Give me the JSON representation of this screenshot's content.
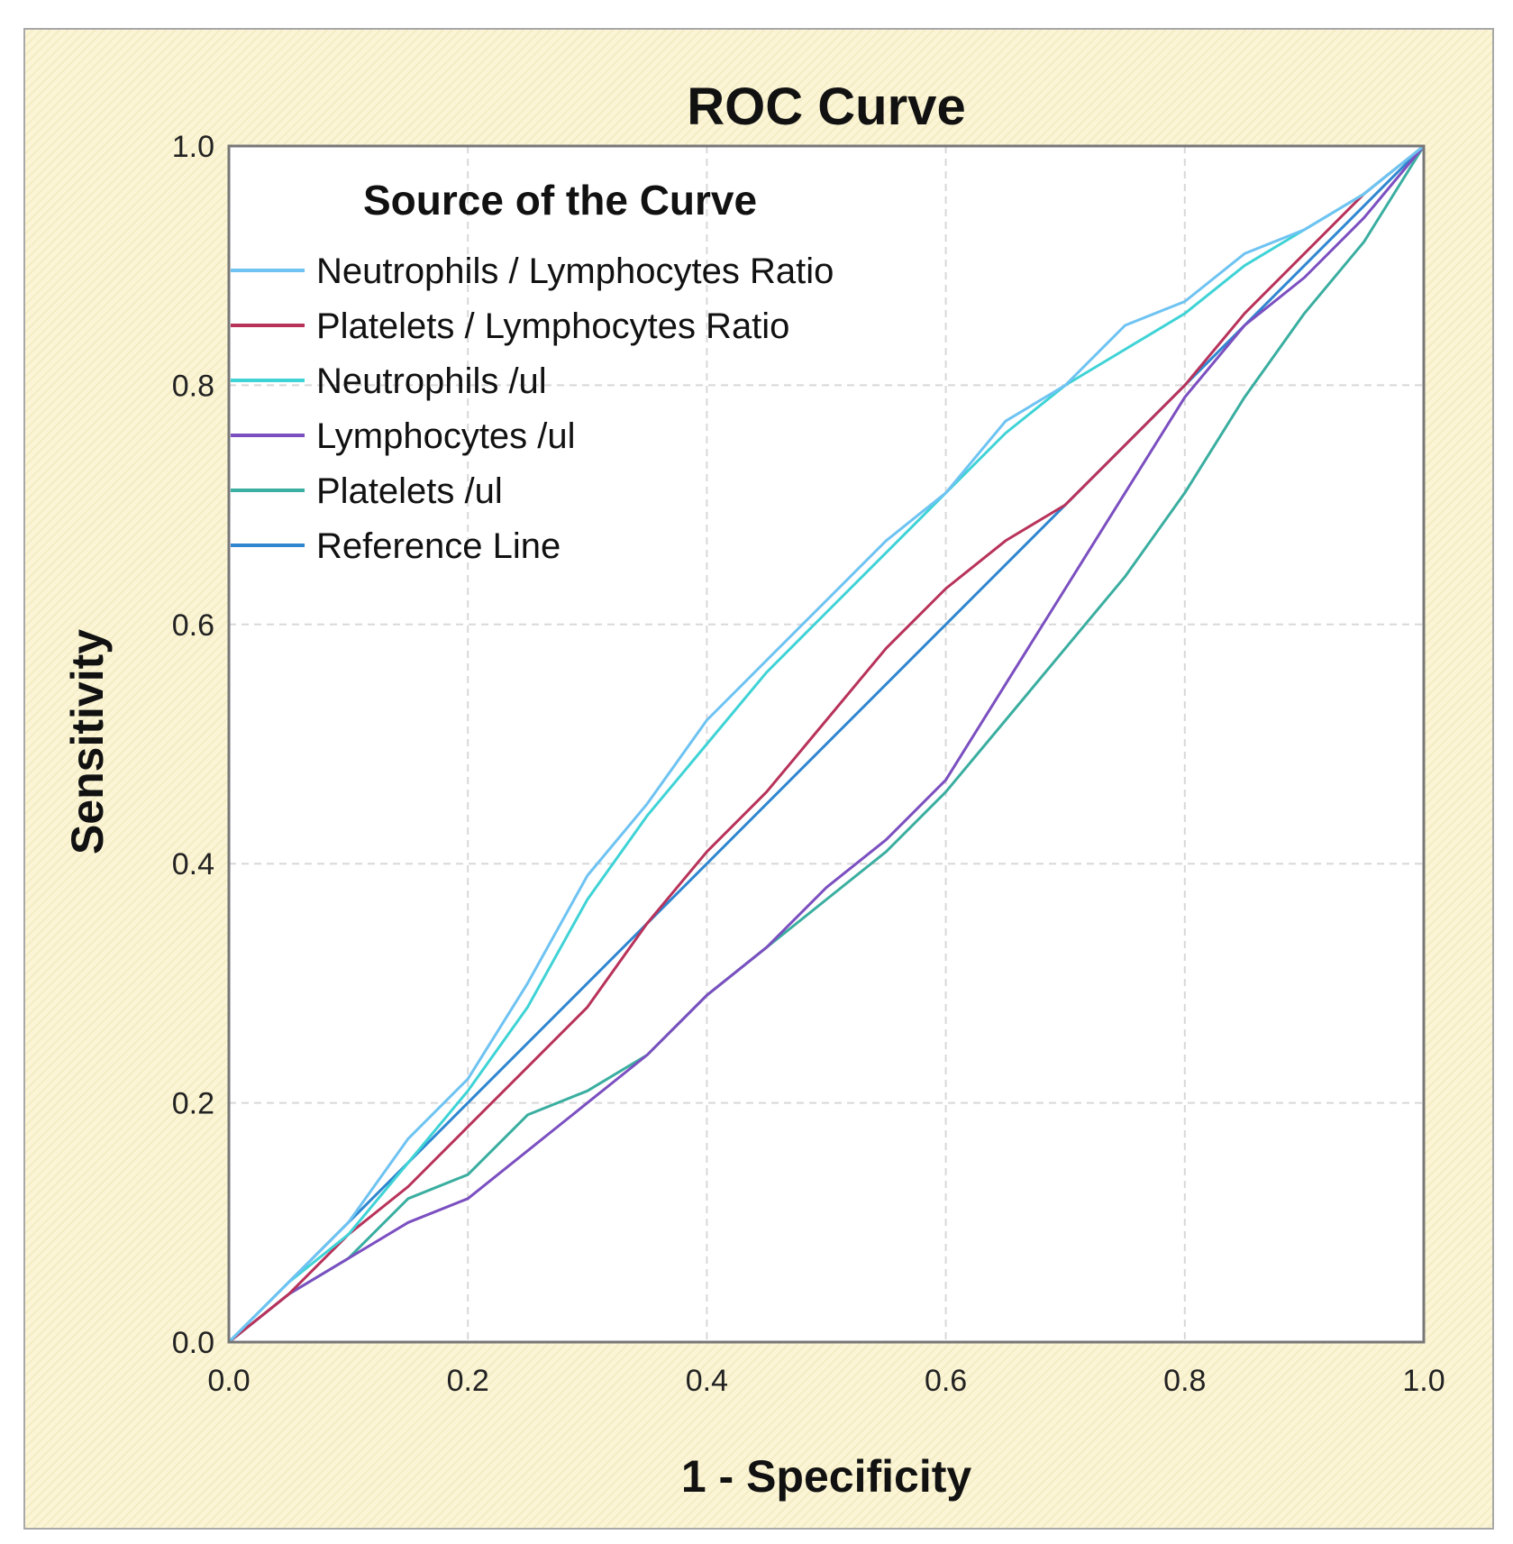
{
  "chart_data": {
    "type": "line",
    "title": "ROC Curve",
    "xlabel": "1 - Specificity",
    "ylabel": "Sensitivity",
    "xlim": [
      0,
      1
    ],
    "ylim": [
      0,
      1
    ],
    "xticks": [
      "0.0",
      "0.2",
      "0.4",
      "0.6",
      "0.8",
      "1.0"
    ],
    "yticks": [
      "0.0",
      "0.2",
      "0.4",
      "0.6",
      "0.8",
      "1.0"
    ],
    "grid": true,
    "legend": {
      "title": "Source of the Curve",
      "placement": "top-left"
    },
    "series": [
      {
        "name": "Neutrophils / Lymphocytes Ratio",
        "color": "#6ec3f2",
        "x": [
          0,
          0.05,
          0.1,
          0.15,
          0.2,
          0.25,
          0.3,
          0.35,
          0.4,
          0.45,
          0.5,
          0.55,
          0.6,
          0.65,
          0.7,
          0.75,
          0.8,
          0.85,
          0.9,
          0.95,
          1
        ],
        "y": [
          0,
          0.05,
          0.1,
          0.17,
          0.22,
          0.3,
          0.39,
          0.45,
          0.52,
          0.57,
          0.62,
          0.67,
          0.71,
          0.77,
          0.8,
          0.85,
          0.87,
          0.91,
          0.93,
          0.96,
          1
        ]
      },
      {
        "name": "Platelets / Lymphocytes Ratio",
        "color": "#b8325a",
        "x": [
          0,
          0.05,
          0.1,
          0.15,
          0.2,
          0.25,
          0.3,
          0.35,
          0.4,
          0.45,
          0.5,
          0.55,
          0.6,
          0.65,
          0.7,
          0.75,
          0.8,
          0.85,
          0.9,
          0.95,
          1
        ],
        "y": [
          0,
          0.04,
          0.09,
          0.13,
          0.18,
          0.23,
          0.28,
          0.35,
          0.41,
          0.46,
          0.52,
          0.58,
          0.63,
          0.67,
          0.7,
          0.75,
          0.8,
          0.86,
          0.91,
          0.96,
          1
        ]
      },
      {
        "name": "Neutrophils /ul",
        "color": "#3fd3d6",
        "x": [
          0,
          0.05,
          0.1,
          0.15,
          0.2,
          0.25,
          0.3,
          0.35,
          0.4,
          0.45,
          0.5,
          0.55,
          0.6,
          0.65,
          0.7,
          0.75,
          0.8,
          0.85,
          0.9,
          0.95,
          1
        ],
        "y": [
          0,
          0.05,
          0.09,
          0.15,
          0.21,
          0.28,
          0.37,
          0.44,
          0.5,
          0.56,
          0.61,
          0.66,
          0.71,
          0.76,
          0.8,
          0.83,
          0.86,
          0.9,
          0.93,
          0.96,
          1
        ]
      },
      {
        "name": "Lymphocytes /ul",
        "color": "#7b4fc0",
        "x": [
          0,
          0.05,
          0.1,
          0.15,
          0.2,
          0.25,
          0.3,
          0.35,
          0.4,
          0.45,
          0.5,
          0.55,
          0.6,
          0.65,
          0.7,
          0.75,
          0.8,
          0.85,
          0.9,
          0.95,
          1
        ],
        "y": [
          0,
          0.04,
          0.07,
          0.1,
          0.12,
          0.16,
          0.2,
          0.24,
          0.29,
          0.33,
          0.38,
          0.42,
          0.47,
          0.55,
          0.63,
          0.71,
          0.79,
          0.85,
          0.89,
          0.94,
          1
        ]
      },
      {
        "name": "Platelets /ul",
        "color": "#3aaea0",
        "x": [
          0,
          0.05,
          0.1,
          0.15,
          0.2,
          0.25,
          0.3,
          0.35,
          0.4,
          0.45,
          0.5,
          0.55,
          0.6,
          0.65,
          0.7,
          0.75,
          0.8,
          0.85,
          0.9,
          0.95,
          1
        ],
        "y": [
          0,
          0.04,
          0.07,
          0.12,
          0.14,
          0.19,
          0.21,
          0.24,
          0.29,
          0.33,
          0.37,
          0.41,
          0.46,
          0.52,
          0.58,
          0.64,
          0.71,
          0.79,
          0.86,
          0.92,
          1
        ]
      },
      {
        "name": "Reference Line",
        "color": "#2f86d0",
        "x": [
          0,
          1
        ],
        "y": [
          0,
          1
        ]
      }
    ]
  }
}
